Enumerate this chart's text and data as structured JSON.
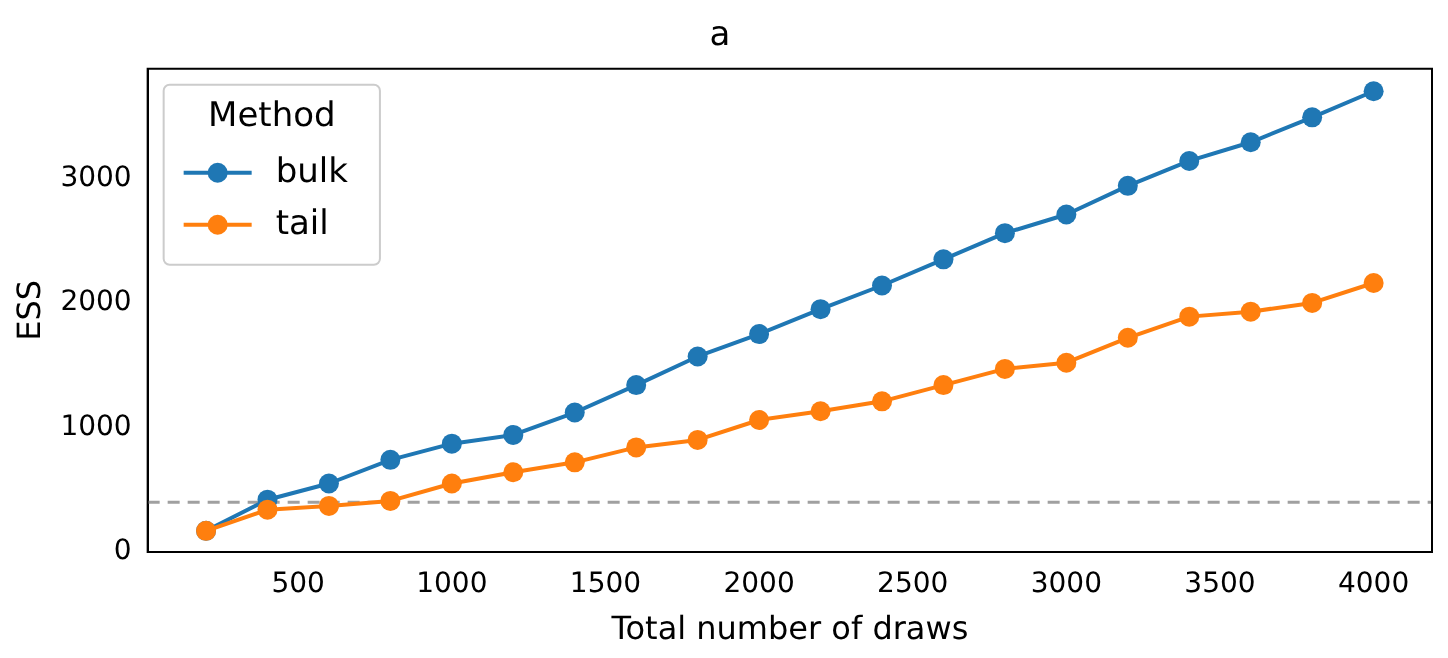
{
  "chart_data": {
    "type": "line",
    "title": "a",
    "xlabel": "Total number of draws",
    "ylabel": "ESS",
    "legend_title": "Method",
    "x": [
      200,
      400,
      600,
      800,
      1000,
      1200,
      1400,
      1600,
      1800,
      2000,
      2200,
      2400,
      2600,
      2800,
      3000,
      3200,
      3400,
      3600,
      3800,
      4000
    ],
    "series": [
      {
        "name": "bulk",
        "color": "#1f77b4",
        "values": [
          170,
          420,
          550,
          740,
          870,
          940,
          1120,
          1340,
          1570,
          1750,
          1950,
          2140,
          2350,
          2560,
          2710,
          2940,
          3140,
          3290,
          3490,
          3700
        ]
      },
      {
        "name": "tail",
        "color": "#ff7f0e",
        "values": [
          170,
          340,
          370,
          410,
          550,
          640,
          720,
          840,
          900,
          1060,
          1130,
          1210,
          1340,
          1470,
          1520,
          1720,
          1890,
          1930,
          2000,
          2160
        ]
      }
    ],
    "xlim": [
      10,
      4190
    ],
    "xticks": [
      500,
      1000,
      1500,
      2000,
      2500,
      3000,
      3500,
      4000
    ],
    "ylim": [
      0,
      3880
    ],
    "yticks": [
      0,
      1000,
      2000,
      3000
    ],
    "ref_lines": [
      {
        "axis": "y",
        "value": 400,
        "color": "#a0a0a0",
        "line_style": "dashed"
      }
    ],
    "grid": false,
    "legend": "top left",
    "marker": "circle",
    "line_style": "solid"
  }
}
